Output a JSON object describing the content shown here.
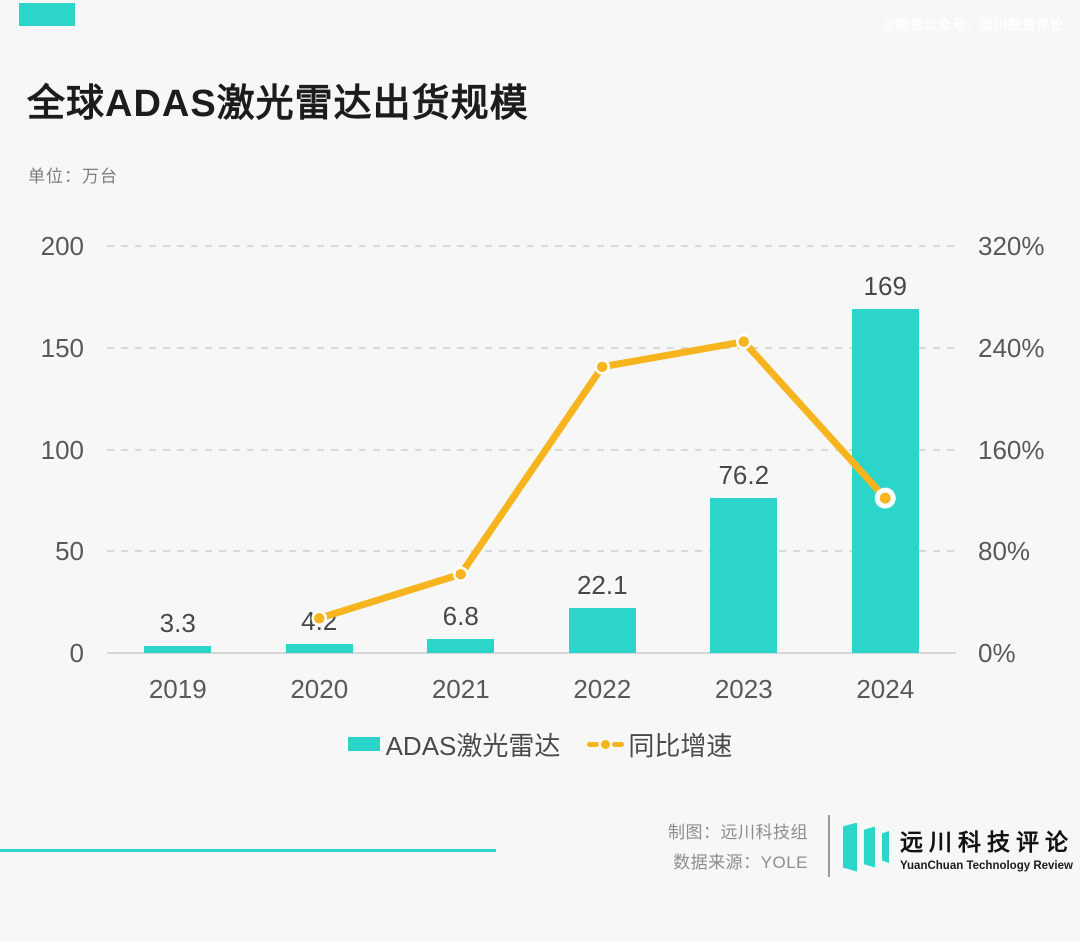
{
  "watermark": "@微信公众号：远川投资评论",
  "title": "全球ADAS激光雷达出货规模",
  "unit_label": "单位：万台",
  "colors": {
    "accent_teal": "#2bd5c9",
    "line_yellow": "#f6b51e",
    "background": "#f7f7f7",
    "grid": "#d9d9d9"
  },
  "chart_data": {
    "type": "bar",
    "categories": [
      "2019",
      "2020",
      "2021",
      "2022",
      "2023",
      "2024"
    ],
    "series": [
      {
        "name": "ADAS激光雷达",
        "type": "bar",
        "axis": "left",
        "values": [
          3.3,
          4.2,
          6.8,
          22.1,
          76.2,
          169
        ]
      },
      {
        "name": "同比增速",
        "type": "line",
        "axis": "right",
        "unit": "%",
        "values": [
          null,
          27.3,
          61.9,
          225.0,
          244.8,
          121.8
        ]
      }
    ],
    "bar_labels": [
      "3.3",
      "4.2",
      "6.8",
      "22.1",
      "76.2",
      "169"
    ],
    "left_axis": {
      "range": [
        0,
        200
      ],
      "ticks": [
        "0",
        "50",
        "100",
        "150",
        "200"
      ]
    },
    "right_axis": {
      "range": [
        0,
        320
      ],
      "ticks": [
        "0%",
        "80%",
        "160%",
        "240%",
        "320%"
      ]
    },
    "grid": "horizontal dashed",
    "legend_position": "bottom"
  },
  "legend": {
    "bar_label": "ADAS激光雷达",
    "line_label": "同比增速"
  },
  "footer": {
    "credit_line1": "制图：远川科技组",
    "credit_line2": "数据来源：YOLE",
    "logo_title": "远川科技评论",
    "logo_subtitle": "YuanChuan Technology Review"
  }
}
